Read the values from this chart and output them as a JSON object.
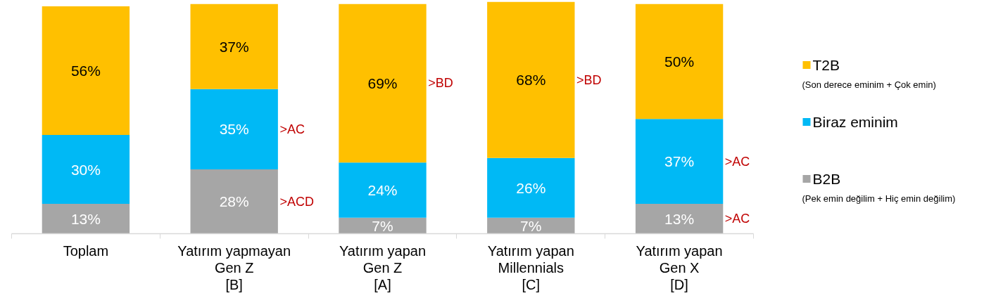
{
  "chart_data": {
    "type": "bar",
    "stacked": true,
    "categories": [
      "Toplam",
      "Yatırım yapmayan\nGen Z\n[B]",
      "Yatırım yapan\nGen Z\n[A]",
      "Yatırım yapan\nMillennials\n[C]",
      "Yatırım yapan\nGen X\n[D]"
    ],
    "series": [
      {
        "name": "B2B",
        "color": "#a6a6a6",
        "values": [
          13,
          28,
          7,
          7,
          13
        ],
        "value_labels": [
          "13%",
          "28%",
          "7%",
          "7%",
          "13%"
        ]
      },
      {
        "name": "Biraz eminim",
        "color": "#00b9f5",
        "values": [
          30,
          35,
          24,
          26,
          37
        ],
        "value_labels": [
          "30%",
          "35%",
          "24%",
          "26%",
          "37%"
        ]
      },
      {
        "name": "T2B",
        "color": "#ffc000",
        "values": [
          56,
          37,
          69,
          68,
          50
        ],
        "value_labels": [
          "56%",
          "37%",
          "69%",
          "68%",
          "50%"
        ]
      }
    ],
    "annotations": [
      ">AC",
      ">ACD",
      ">BD",
      ">BD",
      ">AC",
      ">AC",
      "(Son derece eminim + Çok emin)",
      "(Pek emin değilim + Hiç emin değilim)"
    ],
    "legend": "right"
  }
}
